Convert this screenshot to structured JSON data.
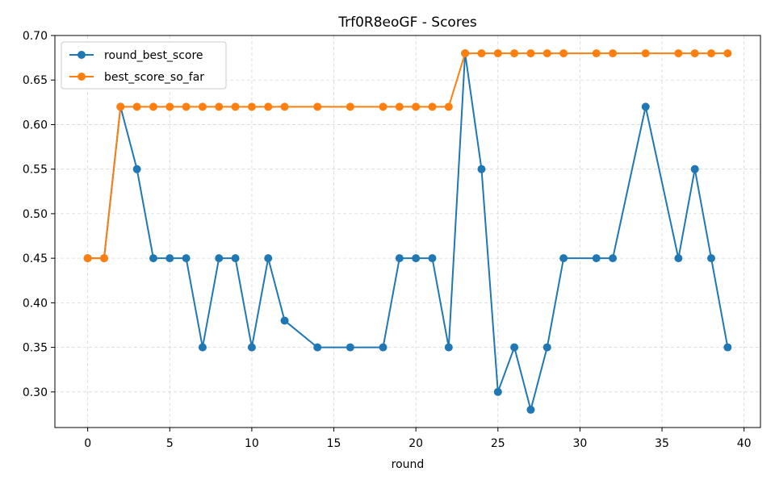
{
  "chart_data": {
    "type": "line",
    "title": "Trf0R8eoGF - Scores",
    "xlabel": "round",
    "ylabel": "",
    "xlim": [
      -2,
      41
    ],
    "ylim": [
      0.26,
      0.7
    ],
    "xticks": [
      0,
      5,
      10,
      15,
      20,
      25,
      30,
      35,
      40
    ],
    "yticks": [
      0.3,
      0.35,
      0.4,
      0.45,
      0.5,
      0.55,
      0.6,
      0.65,
      0.7
    ],
    "grid": true,
    "legend_position": "top-left",
    "series": [
      {
        "name": "round_best_score",
        "color": "#1f77b4",
        "marker": "circle",
        "x": [
          0,
          1,
          2,
          3,
          4,
          5,
          6,
          7,
          8,
          9,
          10,
          11,
          12,
          14,
          16,
          18,
          19,
          20,
          21,
          22,
          23,
          24,
          25,
          26,
          27,
          28,
          29,
          31,
          32,
          34,
          36,
          37,
          38,
          39
        ],
        "y": [
          0.45,
          0.45,
          0.62,
          0.55,
          0.45,
          0.45,
          0.45,
          0.35,
          0.45,
          0.45,
          0.35,
          0.45,
          0.38,
          0.35,
          0.35,
          0.35,
          0.45,
          0.45,
          0.45,
          0.35,
          0.68,
          0.55,
          0.3,
          0.35,
          0.28,
          0.35,
          0.45,
          0.45,
          0.45,
          0.62,
          0.45,
          0.55,
          0.45,
          0.35
        ]
      },
      {
        "name": "best_score_so_far",
        "color": "#ff7f0e",
        "marker": "circle",
        "x": [
          0,
          1,
          2,
          3,
          4,
          5,
          6,
          7,
          8,
          9,
          10,
          11,
          12,
          14,
          16,
          18,
          19,
          20,
          21,
          22,
          23,
          24,
          25,
          26,
          27,
          28,
          29,
          31,
          32,
          34,
          36,
          37,
          38,
          39
        ],
        "y": [
          0.45,
          0.45,
          0.62,
          0.62,
          0.62,
          0.62,
          0.62,
          0.62,
          0.62,
          0.62,
          0.62,
          0.62,
          0.62,
          0.62,
          0.62,
          0.62,
          0.62,
          0.62,
          0.62,
          0.62,
          0.68,
          0.68,
          0.68,
          0.68,
          0.68,
          0.68,
          0.68,
          0.68,
          0.68,
          0.68,
          0.68,
          0.68,
          0.68,
          0.68
        ]
      }
    ]
  }
}
